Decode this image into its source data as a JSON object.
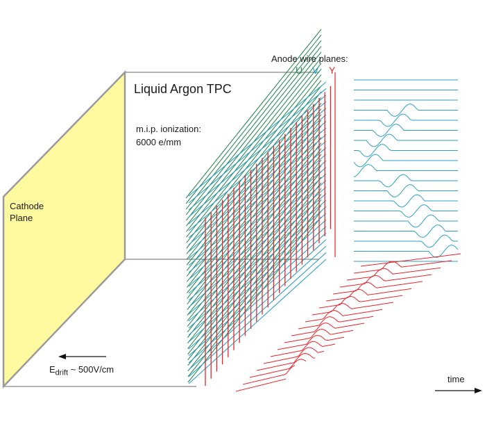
{
  "labels": {
    "title": "Liquid Argon TPC",
    "ionization_line1": "m.i.p. ionization:",
    "ionization_line2": "6000 e/mm",
    "cathode_line1": "Cathode",
    "cathode_line2": "Plane",
    "anode": "Anode wire planes:",
    "plane_u": "U",
    "plane_v": "V",
    "plane_y": "Y",
    "edrift_main": "E",
    "edrift_sub": "drift",
    "edrift_value": " ~ 500V/cm",
    "time": "time"
  },
  "colors": {
    "u_plane": "#2e8b57",
    "v_plane": "#2aa0c4",
    "y_plane": "#e8232a",
    "cathode_fill": "#fffaa0",
    "box_edge": "#9a9a9a",
    "arrow": "#111111"
  }
}
